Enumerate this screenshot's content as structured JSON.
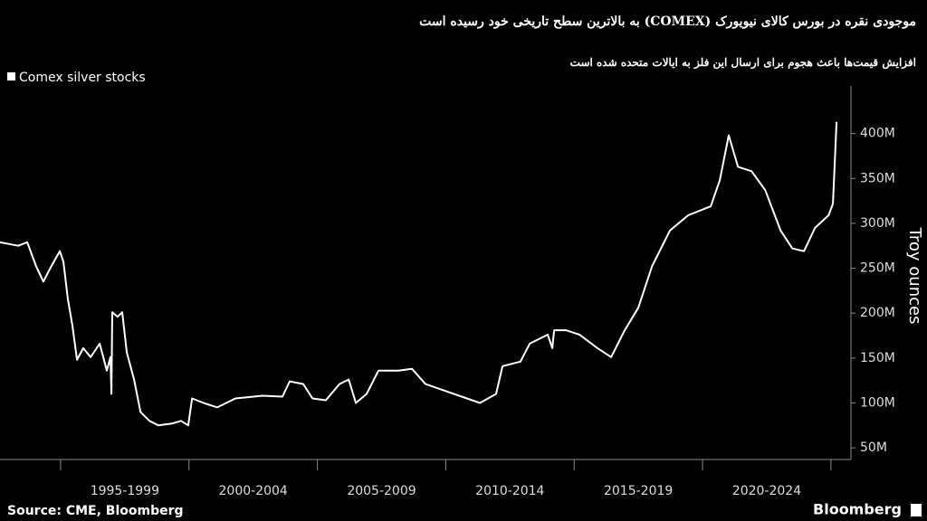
{
  "chart_data": {
    "type": "line",
    "title": "موجودی نقره در بورس کالای نیویورک (COMEX) به بالاترین سطح تاریخی خود رسیده است",
    "subtitle": "افزایش قیمت‌ها باعث هجوم برای ارسال این فلز به ایالات متحده شده است",
    "y_label": "Troy ounces",
    "source": "Source: CME, Bloomberg",
    "brand": "Bloomberg",
    "xlim": [
      1992.64,
      2025.78
    ],
    "ylim": [
      37,
      448
    ],
    "x_separators": [
      1995,
      2000,
      2005,
      2010,
      2015,
      2020,
      2025
    ],
    "xticks": [
      {
        "value": 1997.5,
        "label": "1995-1999"
      },
      {
        "value": 2002.5,
        "label": "2000-2004"
      },
      {
        "value": 2007.5,
        "label": "2005-2009"
      },
      {
        "value": 2012.5,
        "label": "2010-2014"
      },
      {
        "value": 2017.5,
        "label": "2015-2019"
      },
      {
        "value": 2022.5,
        "label": "2020-2024"
      }
    ],
    "yticks": [
      {
        "value": 50,
        "label": "50M"
      },
      {
        "value": 100,
        "label": "100M"
      },
      {
        "value": 150,
        "label": "150M"
      },
      {
        "value": 200,
        "label": "200M"
      },
      {
        "value": 250,
        "label": "250M"
      },
      {
        "value": 300,
        "label": "300M"
      },
      {
        "value": 350,
        "label": "350M"
      },
      {
        "value": 400,
        "label": "400M"
      }
    ],
    "grid": false,
    "x": [
      1992.64,
      1993.35,
      1993.7,
      1994.05,
      1994.33,
      1994.58,
      1994.83,
      1994.97,
      1995.11,
      1995.28,
      1995.46,
      1995.64,
      1995.88,
      1996.17,
      1996.52,
      1996.8,
      1996.94,
      1996.98,
      1997.01,
      1997.22,
      1997.4,
      1997.58,
      1997.86,
      1998.11,
      1998.46,
      1998.81,
      1999.34,
      1999.69,
      1999.97,
      2000.12,
      2000.57,
      2001.1,
      2001.81,
      2002.87,
      2003.64,
      2003.92,
      2004.45,
      2004.81,
      2005.33,
      2005.86,
      2006.22,
      2006.5,
      2006.92,
      2007.38,
      2008.16,
      2008.68,
      2009.21,
      2009.92,
      2010.62,
      2011.33,
      2011.96,
      2012.21,
      2012.91,
      2013.27,
      2013.97,
      2014.15,
      2014.22,
      2014.68,
      2015.21,
      2015.91,
      2016.44,
      2016.97,
      2017.5,
      2018.03,
      2018.73,
      2019.44,
      2020.32,
      2020.67,
      2021.02,
      2021.38,
      2021.91,
      2022.44,
      2023.04,
      2023.5,
      2023.95,
      2024.38,
      2024.91,
      2025.08,
      2025.22
    ],
    "series": [
      {
        "name": "Comex silver stocks",
        "color": "#ffffff",
        "values": [
          279,
          275,
          279,
          252,
          235,
          249,
          262,
          269,
          257,
          216,
          186,
          148,
          161,
          151,
          166,
          136,
          151,
          110,
          201,
          196,
          201,
          156,
          126,
          90,
          80,
          75,
          77,
          80,
          75,
          105,
          100,
          95,
          105,
          108,
          107,
          124,
          121,
          105,
          103,
          121,
          126,
          100,
          110,
          136,
          136,
          138,
          121,
          114,
          107,
          100,
          110,
          141,
          146,
          166,
          176,
          161,
          181,
          181,
          176,
          161,
          151,
          181,
          206,
          252,
          292,
          309,
          319,
          348,
          398,
          363,
          358,
          337,
          292,
          272,
          269,
          295,
          309,
          322,
          413
        ]
      }
    ]
  }
}
